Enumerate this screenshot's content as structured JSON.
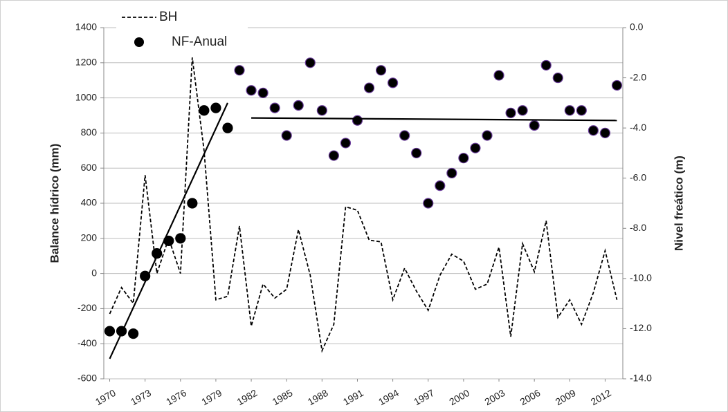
{
  "chart_data": {
    "type": "combo",
    "x": [
      1970,
      1971,
      1972,
      1973,
      1974,
      1975,
      1976,
      1977,
      1978,
      1979,
      1980,
      1981,
      1982,
      1983,
      1984,
      1985,
      1986,
      1987,
      1988,
      1989,
      1990,
      1991,
      1992,
      1993,
      1994,
      1995,
      1996,
      1997,
      1998,
      1999,
      2000,
      2001,
      2002,
      2003,
      2004,
      2005,
      2006,
      2007,
      2008,
      2009,
      2010,
      2011,
      2012,
      2013
    ],
    "xlim": [
      1969.5,
      2013.5
    ],
    "xticks": [
      1970,
      1973,
      1976,
      1979,
      1982,
      1985,
      1988,
      1991,
      1994,
      1997,
      2000,
      2003,
      2006,
      2009,
      2012
    ],
    "y_label": "Balance hídrico (mm)",
    "y2_label": "Nivel freático (m)",
    "ylim": [
      -600,
      1400
    ],
    "yticks": [
      -600,
      -400,
      -200,
      0,
      200,
      400,
      600,
      800,
      1000,
      1200,
      1400
    ],
    "y2lim": [
      -14,
      0
    ],
    "y2ticks": [
      {
        "value": -14,
        "label": "-14.0"
      },
      {
        "value": -12,
        "label": "-12.0"
      },
      {
        "value": -10,
        "label": "-10.0"
      },
      {
        "value": -8,
        "label": "-8.0"
      },
      {
        "value": -6,
        "label": "-6.0"
      },
      {
        "value": -4,
        "label": "-4.0"
      },
      {
        "value": -2,
        "label": "-2.0"
      },
      {
        "value": 0,
        "label": "0.0"
      }
    ],
    "grid": true,
    "legend": "top-left",
    "series": [
      {
        "name": "BH",
        "kind": "dashed-line",
        "color": "#000000",
        "values": [
          -230,
          -80,
          -170,
          560,
          0,
          200,
          0,
          1230,
          700,
          -150,
          -130,
          270,
          -300,
          -60,
          -140,
          -90,
          250,
          -10,
          -440,
          -290,
          380,
          360,
          190,
          180,
          -150,
          30,
          -100,
          -210,
          -10,
          110,
          70,
          -90,
          -60,
          150,
          -360,
          170,
          10,
          300,
          -250,
          -150,
          -290,
          -110,
          130,
          -150
        ]
      },
      {
        "name": "NF-Anual",
        "kind": "dots",
        "color": "#000000",
        "axis": "y2",
        "values": [
          -12.1,
          -12.1,
          -12.2,
          -9.9,
          -9.0,
          -8.5,
          -8.4,
          -7.0,
          -3.3,
          -3.2,
          -4.0,
          -1.7,
          -2.5,
          -2.6,
          -3.2,
          -4.3,
          -3.1,
          -1.4,
          -3.3,
          -5.1,
          -4.6,
          -3.7,
          -2.4,
          -1.7,
          -2.2,
          -4.3,
          -5.0,
          -7.0,
          -6.3,
          -5.8,
          -5.2,
          -4.8,
          -4.3,
          -1.9,
          -3.4,
          -3.3,
          -3.9,
          -1.5,
          -2.0,
          -3.3,
          -3.3,
          -4.1,
          -4.2,
          -2.3
        ]
      }
    ],
    "trendlines": [
      {
        "axis": "y2",
        "color": "#000000",
        "x": [
          1970,
          1980
        ],
        "values": [
          -13.2,
          -3.0
        ]
      },
      {
        "axis": "y2",
        "color": "#000000",
        "x": [
          1982,
          2013
        ],
        "values": [
          -3.6,
          -3.7
        ]
      }
    ]
  }
}
